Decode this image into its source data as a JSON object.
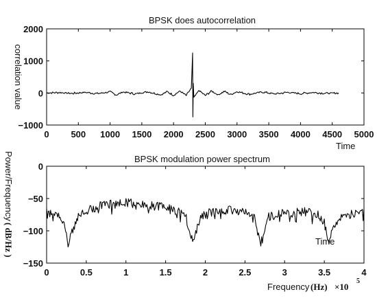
{
  "chart_data": [
    {
      "type": "line",
      "title": "BPSK does autocorrelation",
      "xlabel": "Time",
      "ylabel": "correlation value",
      "xlim": [
        0,
        5000
      ],
      "ylim": [
        -1000,
        2000
      ],
      "x_ticks": [
        "0",
        "500",
        "1000",
        "1500",
        "2000",
        "2500",
        "3000",
        "3500",
        "4000",
        "4500",
        "5000"
      ],
      "y_ticks": [
        "2000",
        "1000",
        "0",
        "−1000"
      ],
      "grid": false,
      "series": [
        {
          "x": [
            0,
            200,
            400,
            600,
            800,
            1000,
            1100,
            1200,
            1400,
            1600,
            1800,
            1900,
            2000,
            2100,
            2200,
            2280,
            2300,
            2305,
            2310,
            2320,
            2400,
            2500,
            2600,
            2700,
            2800,
            2900,
            3000,
            3200,
            3400,
            3600,
            3800,
            4000,
            4200,
            4400,
            4600
          ],
          "y": [
            0,
            15,
            -15,
            20,
            -20,
            30,
            -60,
            30,
            -30,
            40,
            -60,
            40,
            -70,
            60,
            -80,
            150,
            1250,
            -750,
            300,
            -150,
            80,
            -80,
            60,
            -60,
            50,
            -50,
            40,
            -40,
            30,
            -30,
            20,
            -20,
            15,
            -10,
            0
          ]
        }
      ]
    },
    {
      "type": "line",
      "title": "BPSK modulation power spectrum",
      "xlabel": "Frequency",
      "xlabel_unit": "(Hz)",
      "x_multiplier": "×10",
      "x_multiplier_exp": "5",
      "ylabel": "Power/Frequency",
      "ylabel_unit": "( dB/Hz )",
      "annotation": "Time",
      "xlim": [
        0,
        4
      ],
      "ylim": [
        -150,
        0
      ],
      "x_ticks": [
        "0",
        "0.5",
        "1",
        "1.5",
        "2",
        "2.5",
        "3",
        "3.5",
        "4"
      ],
      "y_ticks": [
        "0",
        "−50",
        "−100",
        "−150"
      ],
      "grid": false,
      "series": [
        {
          "x": [
            0,
            0.1,
            0.2,
            0.28,
            0.4,
            0.6,
            0.8,
            1.0,
            1.2,
            1.4,
            1.6,
            1.75,
            1.84,
            1.95,
            2.1,
            2.3,
            2.5,
            2.62,
            2.7,
            2.8,
            3.0,
            3.2,
            3.4,
            3.5,
            3.56,
            3.65,
            3.8,
            4.0
          ],
          "y": [
            -65,
            -68,
            -75,
            -110,
            -68,
            -57,
            -52,
            -50,
            -52,
            -55,
            -60,
            -70,
            -108,
            -70,
            -63,
            -60,
            -63,
            -75,
            -112,
            -72,
            -65,
            -63,
            -66,
            -78,
            -108,
            -78,
            -68,
            -65
          ]
        }
      ]
    }
  ]
}
